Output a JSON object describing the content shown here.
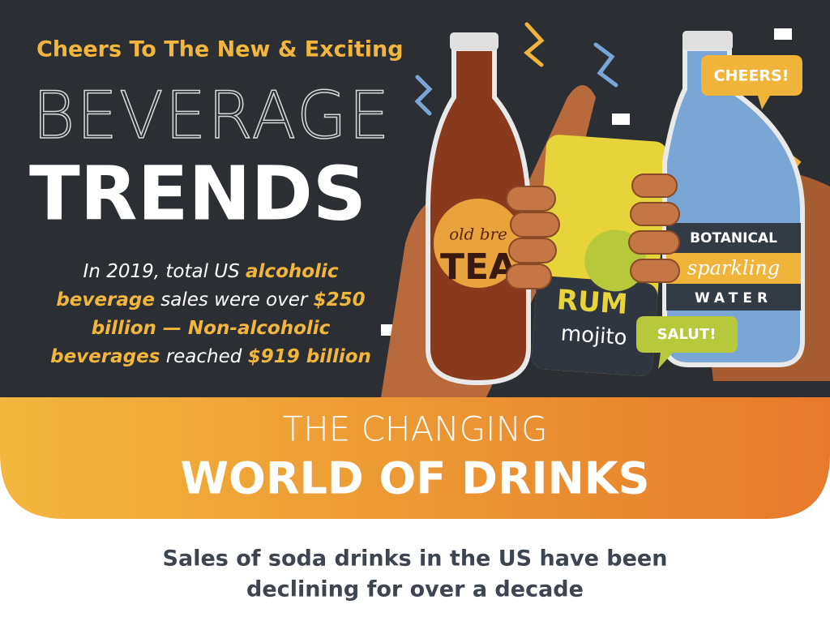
{
  "header": {
    "kicker": "Cheers To The New & Exciting",
    "title_line1": "BEVERAGE",
    "title_line2": "TRENDS"
  },
  "intro": {
    "lines": [
      [
        {
          "text": "In 2019, total US "
        },
        {
          "text": "alcoholic",
          "highlight": true
        }
      ],
      [
        {
          "text": "beverage",
          "highlight": true
        },
        {
          "text": " sales were over "
        },
        {
          "text": "$250",
          "highlight": true
        }
      ],
      [
        {
          "text": "billion — Non-alcoholic",
          "highlight": true
        }
      ],
      [
        {
          "text": "beverages",
          "highlight": true
        },
        {
          "text": " reached "
        },
        {
          "text": "$919 billion",
          "highlight": true
        }
      ]
    ]
  },
  "illustration": {
    "tea_bottle": {
      "script": "old bre",
      "label": "TEA"
    },
    "can": {
      "label": "RUM",
      "flavor": "mojito"
    },
    "water_bottle": {
      "line1": "BOTANICAL",
      "line2": "sparkling",
      "line3": "WATER"
    },
    "bubbles": [
      "CHEERS!",
      "SALUT!"
    ]
  },
  "banner": {
    "line1": "THE CHANGING",
    "line2": "WORLD OF DRINKS"
  },
  "footer": {
    "lines": [
      "Sales of soda drinks in the US have been",
      "declining for over a decade"
    ]
  }
}
